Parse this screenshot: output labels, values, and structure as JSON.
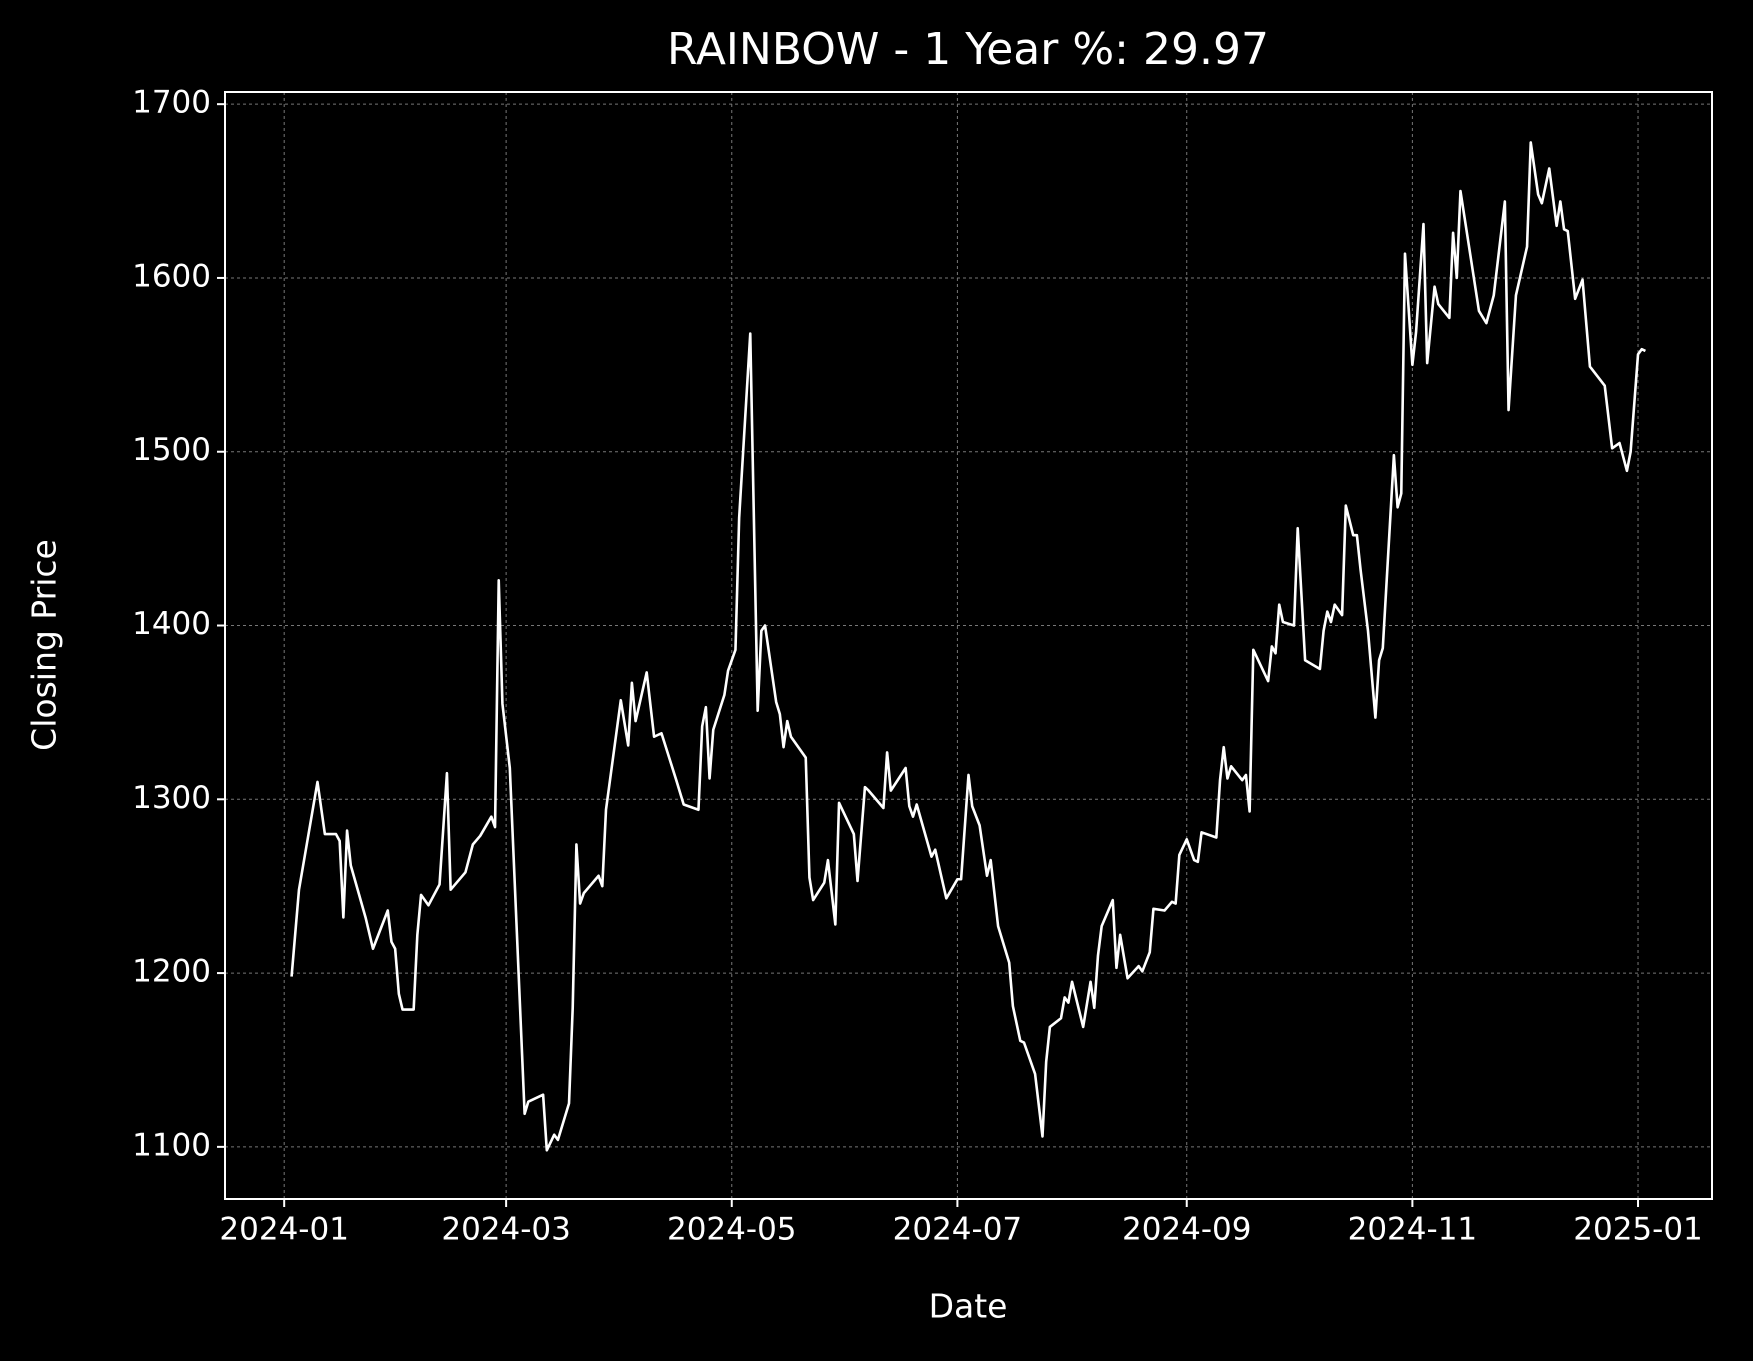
{
  "chart_data": {
    "type": "line",
    "title": "RAINBOW - 1 Year %: 29.97",
    "x_label": "Date",
    "y_label": "Closing Price",
    "xlim": [
      19707,
      20109
    ],
    "ylim": [
      1070,
      1707
    ],
    "xticks": [
      {
        "value": 19723,
        "label": "2024-01"
      },
      {
        "value": 19783,
        "label": "2024-03"
      },
      {
        "value": 19844,
        "label": "2024-05"
      },
      {
        "value": 19905,
        "label": "2024-07"
      },
      {
        "value": 19967,
        "label": "2024-09"
      },
      {
        "value": 20028,
        "label": "2024-11"
      },
      {
        "value": 20089,
        "label": "2025-01"
      }
    ],
    "yticks": [
      1100,
      1200,
      1300,
      1400,
      1500,
      1600,
      1700
    ],
    "grid": true,
    "x": [
      19725,
      19727,
      19732,
      19734,
      19737,
      19738,
      19739,
      19740,
      19741,
      19745,
      19747,
      19751,
      19752,
      19753,
      19754,
      19755,
      19758,
      19759,
      19760,
      19762,
      19765,
      19767,
      19768,
      19772,
      19774,
      19776,
      19779,
      19780,
      19781,
      19782,
      19784,
      19788,
      19789,
      19793,
      19794,
      19796,
      19797,
      19800,
      19801,
      19802,
      19803,
      19804,
      19808,
      19809,
      19810,
      19814,
      19816,
      19817,
      19818,
      19821,
      19823,
      19825,
      19829,
      19831,
      19835,
      19836,
      19837,
      19838,
      19839,
      19842,
      19843,
      19845,
      19846,
      19849,
      19851,
      19852,
      19853,
      19856,
      19857,
      19858,
      19859,
      19860,
      19864,
      19865,
      19866,
      19869,
      19870,
      19872,
      19873,
      19877,
      19878,
      19880,
      19881,
      19885,
      19886,
      19887,
      19891,
      19892,
      19893,
      19894,
      19898,
      19899,
      19902,
      19905,
      19906,
      19908,
      19909,
      19911,
      19913,
      19914,
      19916,
      19919,
      19920,
      19922,
      19923,
      19926,
      19928,
      19929,
      19930,
      19933,
      19934,
      19935,
      19936,
      19939,
      19941,
      19942,
      19943,
      19944,
      19947,
      19948,
      19949,
      19951,
      19954,
      19955,
      19957,
      19958,
      19961,
      19963,
      19964,
      19965,
      19967,
      19969,
      19970,
      19971,
      19975,
      19976,
      19977,
      19978,
      19979,
      19982,
      19983,
      19984,
      19985,
      19989,
      19990,
      19991,
      19992,
      19993,
      19996,
      19997,
      19999,
      20003,
      20004,
      20005,
      20006,
      20007,
      20009,
      20010,
      20012,
      20013,
      20014,
      20016,
      20018,
      20019,
      20020,
      20023,
      20024,
      20025,
      20026,
      20028,
      20029,
      20031,
      20032,
      20034,
      20035,
      20038,
      20039,
      20040,
      20041,
      20046,
      20048,
      20050,
      20053,
      20054,
      20056,
      20059,
      20060,
      20062,
      20063,
      20065,
      20067,
      20068,
      20069,
      20070,
      20072,
      20074,
      20076,
      20080,
      20082,
      20084,
      20086,
      20087,
      20089,
      20090,
      20091
    ],
    "series": [
      {
        "name": "Closing Price",
        "color": "#ffffff",
        "values": [
          1198,
          1248,
          1310,
          1280,
          1280,
          1276,
          1232,
          1282,
          1262,
          1232,
          1214,
          1236,
          1218,
          1214,
          1188,
          1179,
          1179,
          1222,
          1245,
          1239,
          1251,
          1315,
          1248,
          1258,
          1274,
          1279,
          1290,
          1284,
          1426,
          1355,
          1318,
          1119,
          1126,
          1130,
          1098,
          1107,
          1104,
          1125,
          1180,
          1274,
          1240,
          1246,
          1256,
          1250,
          1294,
          1357,
          1331,
          1367,
          1345,
          1373,
          1336,
          1338,
          1311,
          1297,
          1294,
          1342,
          1353,
          1312,
          1340,
          1360,
          1374,
          1386,
          1462,
          1568,
          1351,
          1397,
          1400,
          1356,
          1349,
          1330,
          1345,
          1336,
          1324,
          1255,
          1242,
          1252,
          1265,
          1228,
          1298,
          1280,
          1253,
          1307,
          1305,
          1295,
          1327,
          1305,
          1318,
          1296,
          1290,
          1297,
          1267,
          1271,
          1243,
          1254,
          1254,
          1314,
          1296,
          1285,
          1256,
          1265,
          1227,
          1206,
          1181,
          1161,
          1160,
          1142,
          1106,
          1149,
          1169,
          1174,
          1186,
          1183,
          1195,
          1169,
          1195,
          1180,
          1210,
          1227,
          1242,
          1203,
          1222,
          1197,
          1204,
          1201,
          1212,
          1237,
          1236,
          1241,
          1240,
          1268,
          1277,
          1265,
          1264,
          1281,
          1278,
          1311,
          1330,
          1312,
          1319,
          1311,
          1314,
          1293,
          1386,
          1368,
          1388,
          1384,
          1412,
          1402,
          1400,
          1456,
          1380,
          1375,
          1397,
          1408,
          1402,
          1412,
          1406,
          1469,
          1452,
          1452,
          1432,
          1397,
          1347,
          1380,
          1387,
          1498,
          1468,
          1476,
          1614,
          1550,
          1569,
          1631,
          1551,
          1595,
          1585,
          1577,
          1626,
          1600,
          1650,
          1581,
          1574,
          1590,
          1644,
          1524,
          1590,
          1618,
          1678,
          1648,
          1643,
          1663,
          1630,
          1644,
          1628,
          1627,
          1588,
          1599,
          1549,
          1538,
          1502,
          1505,
          1489,
          1500,
          1556,
          1559,
          1558
        ]
      }
    ]
  }
}
